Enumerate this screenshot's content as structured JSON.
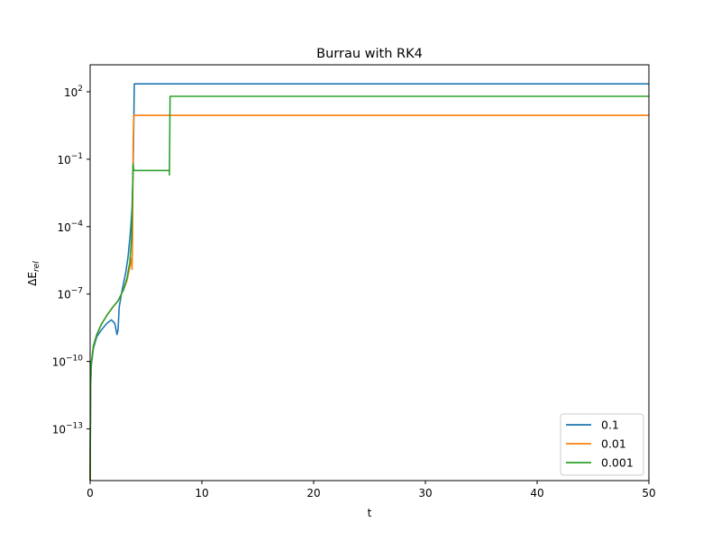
{
  "chart_data": {
    "type": "line",
    "title": "Burrau with RK4",
    "xlabel": "t",
    "ylabel_base": "ΔE",
    "ylabel_sub": "rel",
    "xlim": [
      0,
      50
    ],
    "ylim_log10": [
      -15.3,
      3.2
    ],
    "yscale": "log",
    "grid": false,
    "legend_position": "lower-right",
    "x_ticks": [
      0,
      10,
      20,
      30,
      40,
      50
    ],
    "y_ticks": [
      {
        "base": "10",
        "exp": "2",
        "log10": 2
      },
      {
        "base": "10",
        "exp": "−1",
        "log10": -1
      },
      {
        "base": "10",
        "exp": "−4",
        "log10": -4
      },
      {
        "base": "10",
        "exp": "−7",
        "log10": -7
      },
      {
        "base": "10",
        "exp": "−10",
        "log10": -10
      },
      {
        "base": "10",
        "exp": "−13",
        "log10": -13
      }
    ],
    "series": [
      {
        "name": "0.1",
        "color": "#1f77b4",
        "points_log10": [
          [
            0.0,
            -15.3
          ],
          [
            0.04,
            -11.2
          ],
          [
            0.1,
            -10.2
          ],
          [
            0.3,
            -9.4
          ],
          [
            0.6,
            -8.9
          ],
          [
            1.0,
            -8.6
          ],
          [
            1.5,
            -8.3
          ],
          [
            1.9,
            -8.15
          ],
          [
            2.2,
            -8.3
          ],
          [
            2.4,
            -8.8
          ],
          [
            2.5,
            -8.6
          ],
          [
            2.6,
            -7.6
          ],
          [
            2.8,
            -7.0
          ],
          [
            3.0,
            -6.5
          ],
          [
            3.2,
            -6.0
          ],
          [
            3.4,
            -5.3
          ],
          [
            3.6,
            -4.3
          ],
          [
            3.75,
            -3.2
          ],
          [
            3.85,
            -1.5
          ],
          [
            3.9,
            0.5
          ],
          [
            3.95,
            2.35
          ],
          [
            50,
            2.35
          ]
        ]
      },
      {
        "name": "0.01",
        "color": "#ff7f0e",
        "points_log10": [
          [
            0.0,
            -15.3
          ],
          [
            0.04,
            -11.0
          ],
          [
            0.1,
            -10.1
          ],
          [
            0.3,
            -9.3
          ],
          [
            0.6,
            -8.8
          ],
          [
            1.0,
            -8.35
          ],
          [
            1.5,
            -7.95
          ],
          [
            2.0,
            -7.6
          ],
          [
            2.5,
            -7.3
          ],
          [
            3.0,
            -6.8
          ],
          [
            3.3,
            -6.4
          ],
          [
            3.55,
            -5.8
          ],
          [
            3.7,
            -5.4
          ],
          [
            3.75,
            -5.9
          ],
          [
            3.8,
            -4.5
          ],
          [
            3.85,
            -0.5
          ],
          [
            3.9,
            0.95
          ],
          [
            50,
            0.95
          ]
        ]
      },
      {
        "name": "0.001",
        "color": "#2ca02c",
        "points_log10": [
          [
            0.0,
            -15.3
          ],
          [
            0.04,
            -11.0
          ],
          [
            0.1,
            -10.1
          ],
          [
            0.3,
            -9.3
          ],
          [
            0.6,
            -8.8
          ],
          [
            1.0,
            -8.35
          ],
          [
            1.5,
            -7.95
          ],
          [
            2.0,
            -7.6
          ],
          [
            2.5,
            -7.3
          ],
          [
            3.0,
            -6.8
          ],
          [
            3.3,
            -6.3
          ],
          [
            3.55,
            -5.6
          ],
          [
            3.7,
            -4.6
          ],
          [
            3.8,
            -2.5
          ],
          [
            3.85,
            -1.2
          ],
          [
            3.9,
            -1.5
          ],
          [
            7.1,
            -1.5
          ],
          [
            7.1,
            -1.7
          ],
          [
            7.15,
            1.8
          ],
          [
            50,
            1.8
          ]
        ]
      }
    ]
  }
}
